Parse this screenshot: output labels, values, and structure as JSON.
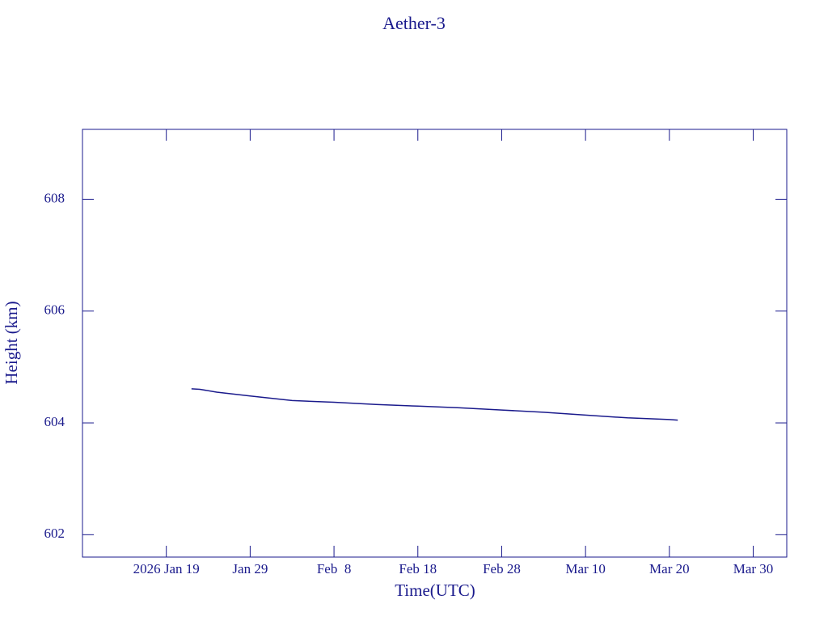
{
  "chart_data": {
    "type": "line",
    "title": "Aether-3",
    "x_label": "Time(UTC)",
    "y_label": "Height (km)",
    "color": "#1a1a8c",
    "x": [
      "2026-01-22",
      "2026-01-23",
      "2026-01-25",
      "2026-01-29",
      "2026-02-03",
      "2026-02-08",
      "2026-02-13",
      "2026-02-18",
      "2026-02-23",
      "2026-02-28",
      "2026-03-05",
      "2026-03-10",
      "2026-03-15",
      "2026-03-20",
      "2026-03-21"
    ],
    "values": [
      604.61,
      604.6,
      604.55,
      604.48,
      604.4,
      604.37,
      604.33,
      604.3,
      604.27,
      604.23,
      604.19,
      604.14,
      604.09,
      604.06,
      604.05
    ],
    "xlim": [
      "2026-01-09",
      "2026-04-03"
    ],
    "xticks": [
      {
        "value": "2026-01-19",
        "label": "2026 Jan 19"
      },
      {
        "value": "2026-01-29",
        "label": "Jan 29"
      },
      {
        "value": "2026-02-08",
        "label": "Feb  8"
      },
      {
        "value": "2026-02-18",
        "label": "Feb 18"
      },
      {
        "value": "2026-02-28",
        "label": "Feb 28"
      },
      {
        "value": "2026-03-10",
        "label": "Mar 10"
      },
      {
        "value": "2026-03-20",
        "label": "Mar 20"
      },
      {
        "value": "2026-03-30",
        "label": "Mar 30"
      }
    ],
    "ylim": [
      601.6,
      609.25
    ],
    "yticks": [
      602,
      604,
      606,
      608
    ]
  }
}
